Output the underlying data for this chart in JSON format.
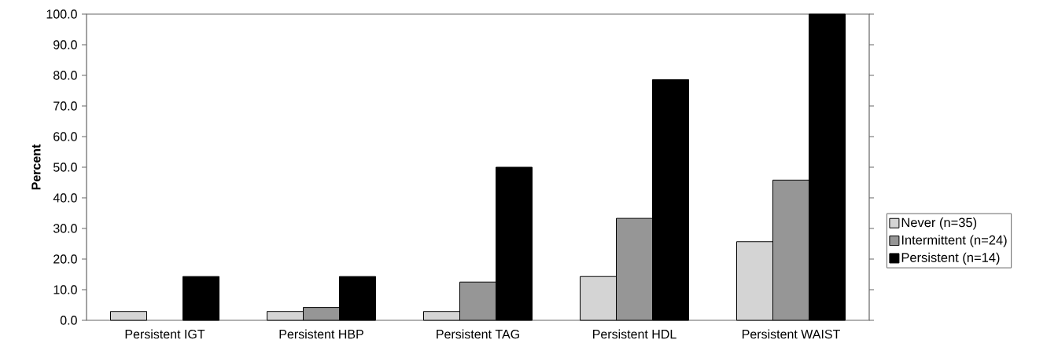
{
  "chart_data": {
    "type": "bar",
    "ylabel": "Percent",
    "categories": [
      "Persistent IGT",
      "Persistent HBP",
      "Persistent TAG",
      "Persistent HDL",
      "Persistent WAIST"
    ],
    "series": [
      {
        "name": "Never (n=35)",
        "color": "#d4d4d4",
        "values": [
          2.9,
          2.9,
          2.9,
          14.3,
          25.7
        ]
      },
      {
        "name": "Intermittent (n=24)",
        "color": "#969696",
        "values": [
          0,
          4.2,
          12.5,
          33.3,
          45.8
        ]
      },
      {
        "name": "Persistent (n=14)",
        "color": "#000000",
        "values": [
          14.3,
          14.3,
          50.0,
          78.6,
          100.0
        ]
      }
    ],
    "ylim": [
      0,
      100
    ],
    "yticks": [
      {
        "value": 0,
        "label": "0.0"
      },
      {
        "value": 10,
        "label": "10.0"
      },
      {
        "value": 20,
        "label": "20.0"
      },
      {
        "value": 30,
        "label": "30.0"
      },
      {
        "value": 40,
        "label": "40.0"
      },
      {
        "value": 50,
        "label": "50.0"
      },
      {
        "value": 60,
        "label": "60.0"
      },
      {
        "value": 70,
        "label": "70.0"
      },
      {
        "value": 80,
        "label": "80.0"
      },
      {
        "value": 90,
        "label": "90.0"
      },
      {
        "value": 100,
        "label": "100.0"
      }
    ],
    "grid": false,
    "legend": "right"
  }
}
